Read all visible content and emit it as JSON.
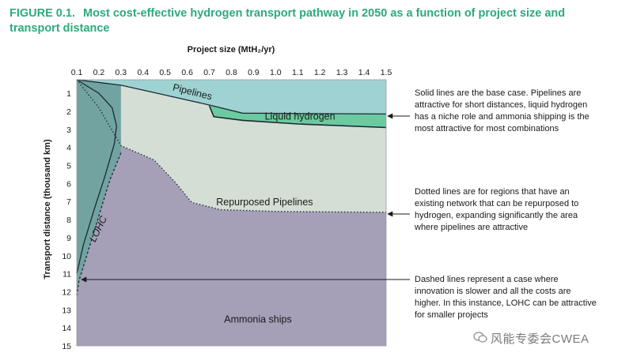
{
  "title": {
    "figure_number": "FIGURE 0.1.",
    "text": "Most cost-effective hydrogen transport pathway in 2050 as a function of project size and transport distance"
  },
  "chart_data": {
    "type": "area",
    "xlabel": "Project size (MtH₂/yr)",
    "ylabel": "Transport distance (thousand km)",
    "x_ticks": [
      "0.1",
      "0.2",
      "0.3",
      "0.4",
      "0.5",
      "0.6",
      "0.7",
      "0.8",
      "0.9",
      "1.0",
      "1.1",
      "1.2",
      "1.3",
      "1.4",
      "1.5"
    ],
    "y_ticks": [
      "1",
      "2",
      "3",
      "4",
      "5",
      "6",
      "7",
      "8",
      "9",
      "10",
      "11",
      "12",
      "13",
      "14",
      "15"
    ],
    "xlim": [
      0.1,
      1.5
    ],
    "ylim": [
      0.25,
      15
    ],
    "y_inverted": true,
    "regions": [
      {
        "name": "Pipelines",
        "color": "#9fd3d3"
      },
      {
        "name": "Liquid hydrogen",
        "color": "#6ccaa0"
      },
      {
        "name": "Repurposed Pipelines",
        "color": "#d5ded5"
      },
      {
        "name": "LOHC",
        "color": "#72a3a1"
      },
      {
        "name": "Ammonia ships",
        "color": "#a59fb8"
      }
    ],
    "boundaries": {
      "pipelines_solid": [
        [
          0.1,
          0.25
        ],
        [
          0.3,
          0.55
        ],
        [
          0.5,
          1.1
        ],
        [
          0.7,
          1.65
        ],
        [
          0.85,
          2.1
        ],
        [
          1.5,
          2.15
        ]
      ],
      "liquid_hydrogen_bottom": [
        [
          0.7,
          1.7
        ],
        [
          0.72,
          2.3
        ],
        [
          0.85,
          2.5
        ],
        [
          1.1,
          2.7
        ],
        [
          1.5,
          2.9
        ]
      ],
      "repurposed_dotted": [
        [
          0.1,
          0.25
        ],
        [
          0.2,
          1.8
        ],
        [
          0.3,
          3.9
        ],
        [
          0.45,
          4.7
        ],
        [
          0.55,
          6.0
        ],
        [
          0.62,
          7.05
        ],
        [
          0.75,
          7.45
        ],
        [
          1.0,
          7.55
        ],
        [
          1.5,
          7.6
        ]
      ],
      "lohc_solid_right": [
        [
          0.1,
          0.25
        ],
        [
          0.2,
          1.0
        ],
        [
          0.26,
          1.8
        ],
        [
          0.28,
          2.8
        ],
        [
          0.27,
          3.8
        ],
        [
          0.23,
          5.5
        ],
        [
          0.18,
          7.4
        ],
        [
          0.13,
          9.4
        ],
        [
          0.1,
          11.0
        ]
      ],
      "lohc_dashed_right": [
        [
          0.3,
          4.3
        ],
        [
          0.25,
          5.8
        ],
        [
          0.2,
          7.8
        ],
        [
          0.15,
          9.8
        ],
        [
          0.11,
          11.4
        ],
        [
          0.1,
          12.2
        ]
      ]
    },
    "region_labels": [
      {
        "text": "Pipelines",
        "x": 0.62,
        "y": 1.1
      },
      {
        "text": "Liquid hydrogen",
        "x": 1.11,
        "y": 2.45
      },
      {
        "text": "Repurposed Pipelines",
        "x": 0.95,
        "y": 7.2
      },
      {
        "text": "LOHC",
        "x": 0.21,
        "y": 8.6
      },
      {
        "text": "Ammonia ships",
        "x": 0.92,
        "y": 13.7
      }
    ]
  },
  "notes": [
    {
      "text": "Solid lines are the base case. Pipelines are attractive for short distances, liquid hydrogen has a niche role and ammonia shipping is the most attractive for most combinations"
    },
    {
      "text": "Dotted lines are for regions that have an existing network that can be repurposed to hydrogen, expanding significantly the area where pipelines are attractive"
    },
    {
      "text": "Dashed lines represent a case where innovation is slower and all the costs are higher. In this instance, LOHC can be attractive for smaller projects"
    }
  ],
  "watermark": "风能专委会CWEA"
}
